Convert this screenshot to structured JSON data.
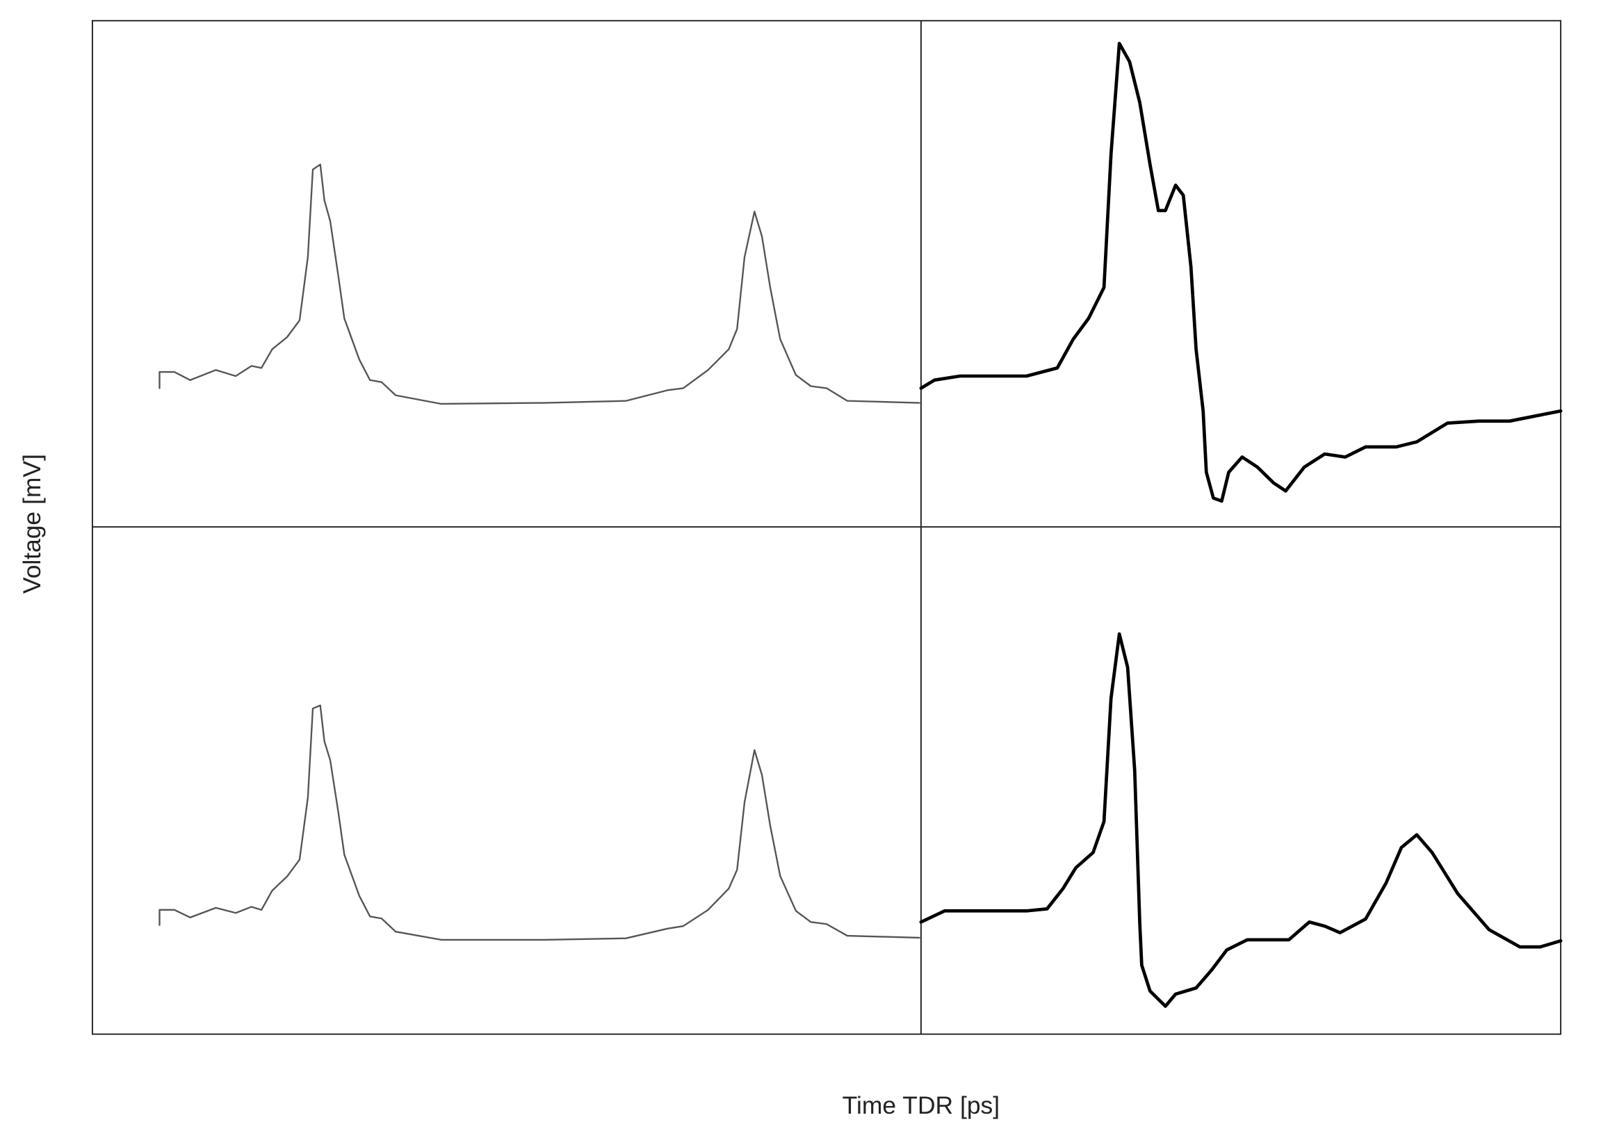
{
  "chart_data": {
    "type": "line",
    "xlabel": "Time TDR [ps]",
    "ylabel": "Voltage [mV]",
    "panels": [
      {
        "xlim": [
          0,
          100
        ],
        "ylim": [
          0,
          100
        ],
        "series": [
          {
            "color": "#555555",
            "linewidth": 1.6,
            "x": [
              8.1,
              8.1,
              9.9,
              11.8,
              14.9,
              17.3,
              19.2,
              20.4,
              21.7,
              23.5,
              25.0,
              26.0,
              26.6,
              27.5,
              28.0,
              28.7,
              29.7,
              30.4,
              32.2,
              33.5,
              34.9,
              36.6,
              42.1,
              54.5,
              64.4,
              69.4,
              71.3,
              74.3,
              76.8,
              77.8,
              78.7,
              79.9,
              80.8,
              81.8,
              83.0,
              84.9,
              86.7,
              88.6,
              91.1,
              99.8
            ],
            "values": [
              27.4,
              30.6,
              30.6,
              29.0,
              31.0,
              29.8,
              31.8,
              31.4,
              35.1,
              37.5,
              40.8,
              53.3,
              70.6,
              71.6,
              64.5,
              60.4,
              49.3,
              41.2,
              33.1,
              29.0,
              28.6,
              26.0,
              24.3,
              24.5,
              24.9,
              27.0,
              27.4,
              31.0,
              35.1,
              39.1,
              53.3,
              62.3,
              57.4,
              47.3,
              37.1,
              30.0,
              27.8,
              27.4,
              24.9,
              24.5
            ]
          }
        ]
      },
      {
        "xlim": [
          0,
          100
        ],
        "ylim": [
          0,
          100
        ],
        "series": [
          {
            "color": "#000000",
            "linewidth": 3.2,
            "x": [
              0,
              2.1,
              6.1,
              16.5,
              21.3,
              23.8,
              26.2,
              28.6,
              29.7,
              31.0,
              32.6,
              34.2,
              35.8,
              37.1,
              38.2,
              39.8,
              41.0,
              42.2,
              43.0,
              44.1,
              44.6,
              45.7,
              47.0,
              48.1,
              50.2,
              52.6,
              55.1,
              57.0,
              59.9,
              63.1,
              66.3,
              69.5,
              74.3,
              77.5,
              82.3,
              87.2,
              92.0,
              100
            ],
            "values": [
              27.4,
              29.0,
              29.8,
              29.8,
              31.4,
              37.1,
              41.2,
              47.3,
              73.6,
              95.5,
              91.9,
              83.8,
              71.6,
              62.5,
              62.5,
              67.5,
              65.5,
              51.3,
              35.1,
              22.9,
              10.8,
              5.7,
              5.1,
              10.8,
              13.8,
              11.8,
              8.7,
              7.1,
              11.8,
              14.4,
              13.8,
              15.8,
              15.8,
              16.8,
              20.5,
              20.9,
              20.9,
              22.9
            ]
          }
        ]
      },
      {
        "xlim": [
          0,
          100
        ],
        "ylim": [
          0,
          100
        ],
        "series": [
          {
            "color": "#555555",
            "linewidth": 1.6,
            "x": [
              8.1,
              8.1,
              9.9,
              11.8,
              14.9,
              17.3,
              19.2,
              20.4,
              21.7,
              23.5,
              25.0,
              26.0,
              26.6,
              27.5,
              28.0,
              28.7,
              29.7,
              30.4,
              32.2,
              33.5,
              34.9,
              36.6,
              42.1,
              54.5,
              64.4,
              69.4,
              71.3,
              74.3,
              76.8,
              77.8,
              78.7,
              79.9,
              80.8,
              81.8,
              83.0,
              84.9,
              86.7,
              88.6,
              91.1,
              99.8
            ],
            "values": [
              21.5,
              24.5,
              24.5,
              23.0,
              24.9,
              23.9,
              25.1,
              24.5,
              28.3,
              31.1,
              34.4,
              46.6,
              64.2,
              64.8,
              57.7,
              54.0,
              43.5,
              35.4,
              27.3,
              23.2,
              22.8,
              20.2,
              18.6,
              18.6,
              18.9,
              20.8,
              21.3,
              24.5,
              28.7,
              32.4,
              45.7,
              56.0,
              51.1,
              41.1,
              31.2,
              24.3,
              22.1,
              21.7,
              19.4,
              19.0
            ]
          }
        ]
      },
      {
        "xlim": [
          0,
          100
        ],
        "ylim": [
          0,
          100
        ],
        "series": [
          {
            "color": "#000000",
            "linewidth": 3.2,
            "x": [
              0,
              3.7,
              16.5,
              19.7,
              22.2,
              24.2,
              26.9,
              28.6,
              29.7,
              31.0,
              32.3,
              33.4,
              34.2,
              34.5,
              35.8,
              38.2,
              39.8,
              43.0,
              45.4,
              47.8,
              51.0,
              57.5,
              60.7,
              63.1,
              65.5,
              69.5,
              72.7,
              75.1,
              77.5,
              79.9,
              83.9,
              88.8,
              93.6,
              96.8,
              100
            ],
            "values": [
              22.1,
              24.3,
              24.3,
              24.7,
              28.7,
              32.8,
              35.8,
              41.9,
              66.2,
              78.9,
              72.3,
              52.0,
              21.7,
              13.6,
              8.5,
              5.5,
              7.9,
              9.1,
              12.6,
              16.6,
              18.6,
              18.6,
              22.1,
              21.3,
              20.0,
              22.7,
              29.8,
              36.8,
              39.3,
              35.8,
              27.7,
              20.6,
              17.2,
              17.2,
              18.4
            ]
          }
        ]
      }
    ]
  }
}
